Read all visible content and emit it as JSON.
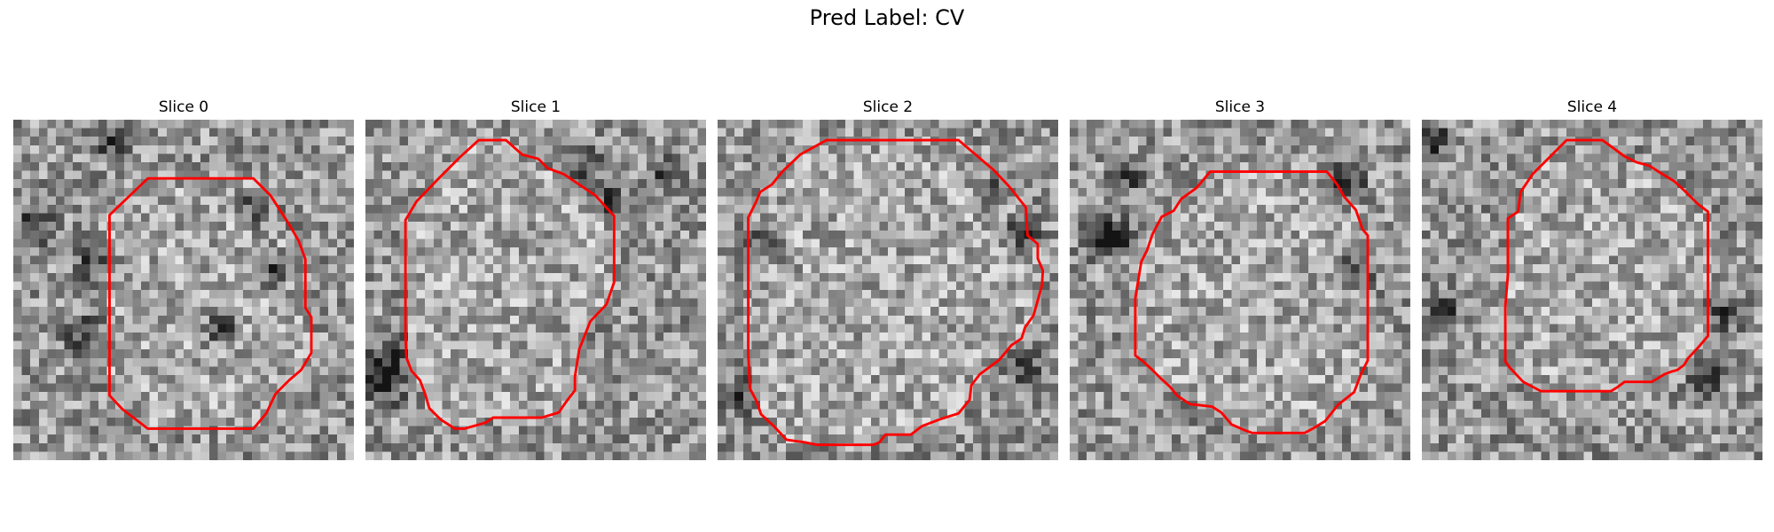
{
  "figure": {
    "title": "Pred Label: CV"
  },
  "slices": [
    {
      "label": "Slice 0",
      "seed": 11,
      "dark_blobs": [
        [
          2,
          12
        ],
        [
          9,
          16
        ],
        [
          28,
          10
        ],
        [
          30,
          17
        ],
        [
          24,
          24
        ],
        [
          8,
          25
        ],
        [
          11,
          2
        ]
      ],
      "contour": [
        [
          11.3,
          11.2
        ],
        [
          15.8,
          6.9
        ],
        [
          28.2,
          6.9
        ],
        [
          30.2,
          8.9
        ],
        [
          32.2,
          12.0
        ],
        [
          33.5,
          14.2
        ],
        [
          34.3,
          16.4
        ],
        [
          34.3,
          22.1
        ],
        [
          35.0,
          23.2
        ],
        [
          35.0,
          27.4
        ],
        [
          33.8,
          29.4
        ],
        [
          32.4,
          30.6
        ],
        [
          30.8,
          32.2
        ],
        [
          29.7,
          34.5
        ],
        [
          28.2,
          36.3
        ],
        [
          15.8,
          36.3
        ],
        [
          12.8,
          34.0
        ],
        [
          11.3,
          32.4
        ]
      ]
    },
    {
      "label": "Slice 1",
      "seed": 27,
      "dark_blobs": [
        [
          1,
          29
        ],
        [
          2,
          31
        ],
        [
          3,
          27
        ],
        [
          25,
          5
        ],
        [
          28,
          9
        ],
        [
          35,
          6
        ]
      ],
      "contour": [
        [
          13.3,
          2.4
        ],
        [
          16.5,
          2.4
        ],
        [
          18.4,
          4.1
        ],
        [
          20.3,
          4.6
        ],
        [
          21.4,
          5.7
        ],
        [
          23.3,
          6.4
        ],
        [
          27.0,
          8.9
        ],
        [
          29.2,
          11.3
        ],
        [
          29.2,
          19.1
        ],
        [
          28.3,
          21.7
        ],
        [
          26.4,
          23.7
        ],
        [
          25.1,
          27.0
        ],
        [
          24.6,
          30.2
        ],
        [
          24.6,
          31.8
        ],
        [
          23.6,
          33.1
        ],
        [
          22.7,
          34.4
        ],
        [
          20.7,
          35.0
        ],
        [
          15.0,
          35.0
        ],
        [
          14.1,
          35.6
        ],
        [
          11.6,
          36.3
        ],
        [
          10.5,
          36.3
        ],
        [
          8.8,
          35.2
        ],
        [
          7.5,
          33.9
        ],
        [
          7.0,
          32.2
        ],
        [
          6.4,
          30.6
        ],
        [
          5.4,
          29.5
        ],
        [
          4.8,
          27.9
        ],
        [
          4.7,
          25.0
        ],
        [
          4.7,
          11.8
        ],
        [
          6.0,
          9.6
        ],
        [
          8.5,
          7.0
        ],
        [
          11.1,
          4.4
        ]
      ]
    },
    {
      "label": "Slice 2",
      "seed": 43,
      "dark_blobs": [
        [
          35,
          13
        ],
        [
          36,
          29
        ],
        [
          2,
          32
        ],
        [
          32,
          8
        ],
        [
          5,
          14
        ]
      ],
      "contour": [
        [
          12.8,
          2.4
        ],
        [
          28.3,
          2.4
        ],
        [
          32.4,
          5.9
        ],
        [
          34.2,
          7.8
        ],
        [
          36.2,
          10.3
        ],
        [
          36.4,
          13.6
        ],
        [
          37.6,
          14.6
        ],
        [
          37.6,
          16.3
        ],
        [
          38.2,
          17.7
        ],
        [
          38.1,
          19.4
        ],
        [
          37.8,
          20.5
        ],
        [
          37.1,
          23.0
        ],
        [
          36.1,
          24.4
        ],
        [
          35.7,
          25.7
        ],
        [
          34.5,
          26.5
        ],
        [
          33.1,
          28.2
        ],
        [
          30.8,
          29.9
        ],
        [
          29.8,
          31.2
        ],
        [
          29.6,
          32.9
        ],
        [
          28.3,
          34.5
        ],
        [
          26.1,
          35.2
        ],
        [
          24.0,
          36.0
        ],
        [
          22.7,
          37.0
        ],
        [
          19.7,
          37.0
        ],
        [
          19.0,
          37.9
        ],
        [
          18.3,
          38.2
        ],
        [
          11.7,
          38.2
        ],
        [
          10.2,
          37.9
        ],
        [
          8.1,
          37.6
        ],
        [
          6.5,
          35.9
        ],
        [
          5.1,
          34.6
        ],
        [
          4.6,
          33.1
        ],
        [
          3.8,
          31.6
        ],
        [
          3.7,
          29.5
        ],
        [
          3.6,
          27.6
        ],
        [
          3.6,
          11.5
        ],
        [
          4.5,
          9.7
        ],
        [
          5.0,
          8.5
        ],
        [
          6.4,
          7.6
        ],
        [
          7.6,
          6.1
        ],
        [
          9.7,
          4.1
        ]
      ]
    },
    {
      "label": "Slice 3",
      "seed": 61,
      "dark_blobs": [
        [
          3,
          14
        ],
        [
          5,
          13
        ],
        [
          32,
          7
        ],
        [
          33,
          17
        ],
        [
          6,
          6
        ]
      ],
      "contour": [
        [
          16.5,
          6.1
        ],
        [
          30.2,
          6.1
        ],
        [
          31.4,
          7.6
        ],
        [
          32.2,
          9.0
        ],
        [
          33.6,
          10.6
        ],
        [
          34.4,
          12.9
        ],
        [
          35.0,
          13.6
        ],
        [
          35.0,
          28.3
        ],
        [
          34.2,
          29.9
        ],
        [
          33.4,
          32.0
        ],
        [
          31.5,
          33.5
        ],
        [
          30.0,
          35.4
        ],
        [
          28.7,
          36.2
        ],
        [
          27.6,
          36.8
        ],
        [
          21.4,
          36.8
        ],
        [
          20.6,
          36.5
        ],
        [
          19.0,
          35.8
        ],
        [
          17.8,
          34.4
        ],
        [
          16.7,
          33.7
        ],
        [
          14.1,
          33.4
        ],
        [
          13.5,
          33.0
        ],
        [
          12.6,
          32.4
        ],
        [
          11.8,
          31.4
        ],
        [
          10.6,
          30.3
        ],
        [
          9.7,
          29.4
        ],
        [
          8.5,
          28.3
        ],
        [
          7.7,
          27.7
        ],
        [
          7.7,
          21.0
        ],
        [
          8.4,
          16.7
        ],
        [
          9.1,
          15.3
        ],
        [
          9.7,
          13.5
        ],
        [
          10.8,
          11.4
        ],
        [
          12.2,
          10.7
        ],
        [
          13.1,
          9.3
        ],
        [
          14.9,
          8.0
        ]
      ]
    },
    {
      "label": "Slice 4",
      "seed": 89,
      "dark_blobs": [
        [
          2,
          22
        ],
        [
          35,
          22
        ],
        [
          33,
          30
        ],
        [
          1,
          2
        ]
      ],
      "contour": [
        [
          17.0,
          2.4
        ],
        [
          21.2,
          2.4
        ],
        [
          22.3,
          3.2
        ],
        [
          23.8,
          4.3
        ],
        [
          25.2,
          5.0
        ],
        [
          26.7,
          5.4
        ],
        [
          28.1,
          6.3
        ],
        [
          29.6,
          7.2
        ],
        [
          30.8,
          8.3
        ],
        [
          32.4,
          9.9
        ],
        [
          33.6,
          10.8
        ],
        [
          33.6,
          25.4
        ],
        [
          32.5,
          26.7
        ],
        [
          31.2,
          28.1
        ],
        [
          30.8,
          28.8
        ],
        [
          30.0,
          29.4
        ],
        [
          29.3,
          29.6
        ],
        [
          28.5,
          29.9
        ],
        [
          27.0,
          30.8
        ],
        [
          23.8,
          30.8
        ],
        [
          23.0,
          31.4
        ],
        [
          22.2,
          31.9
        ],
        [
          14.0,
          31.9
        ],
        [
          11.9,
          30.8
        ],
        [
          10.3,
          29.1
        ],
        [
          9.8,
          28.4
        ],
        [
          9.8,
          22.0
        ],
        [
          10.1,
          18.2
        ],
        [
          10.1,
          11.6
        ],
        [
          11.3,
          10.8
        ],
        [
          11.6,
          8.5
        ],
        [
          13.0,
          6.4
        ],
        [
          15.3,
          4.1
        ]
      ]
    }
  ],
  "colors": {
    "contour": "#ff0000"
  }
}
